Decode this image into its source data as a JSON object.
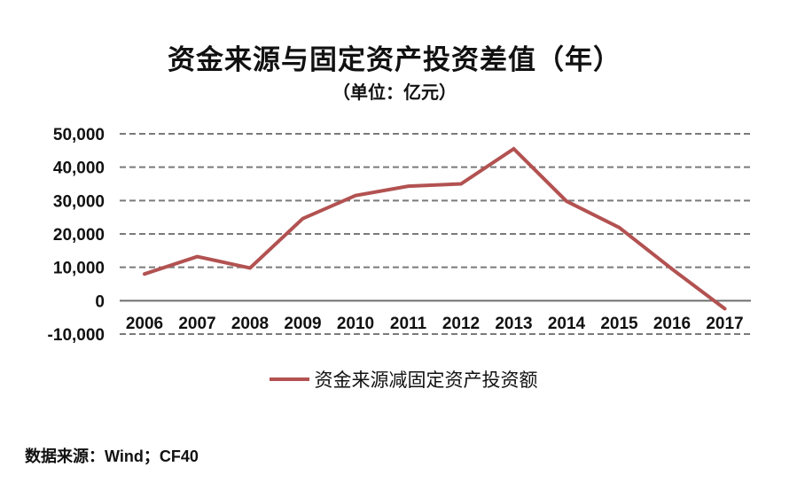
{
  "page": {
    "source": "数据来源：Wind；CF40"
  },
  "colors": {
    "line": "#b25251",
    "grid": "#7a7a7a",
    "zero_line": "#6e6e6e",
    "text": "#111111",
    "background": "#ffffff"
  },
  "chart_data": {
    "type": "line",
    "title": "资金来源与固定资产投资差值（年）",
    "subtitle": "（单位：亿元）",
    "categories": [
      "2006",
      "2007",
      "2008",
      "2009",
      "2010",
      "2011",
      "2012",
      "2013",
      "2014",
      "2015",
      "2016",
      "2017"
    ],
    "series": [
      {
        "name": "资金来源减固定资产投资额",
        "values": [
          8000,
          13200,
          9800,
          24600,
          31500,
          34300,
          35000,
          45500,
          29800,
          21900,
          9500,
          -2400
        ]
      }
    ],
    "xlabel": "",
    "ylabel": "",
    "ylim": [
      -10000,
      50000
    ],
    "ytick_step": 10000,
    "yticks": [
      {
        "value": 50000,
        "label": "50,000"
      },
      {
        "value": 40000,
        "label": "40,000"
      },
      {
        "value": 30000,
        "label": "30,000"
      },
      {
        "value": 20000,
        "label": "20,000"
      },
      {
        "value": 10000,
        "label": "10,000"
      },
      {
        "value": 0,
        "label": "0"
      },
      {
        "value": -10000,
        "label": "-10,000"
      }
    ],
    "grid": "horizontal-dashed, zero line solid",
    "legend_position": "bottom"
  }
}
